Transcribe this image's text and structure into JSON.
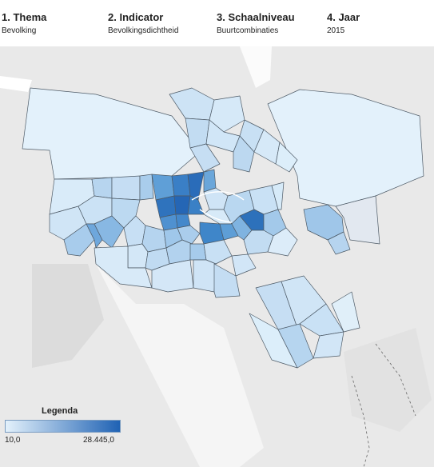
{
  "filters": [
    {
      "title": "1. Thema",
      "value": "Bevolking"
    },
    {
      "title": "2. Indicator",
      "value": "Bevolkingsdichtheid"
    },
    {
      "title": "3. Schaalniveau",
      "value": "Buurtcombinaties"
    },
    {
      "title": "4. Jaar",
      "value": "2015"
    }
  ],
  "legend": {
    "title": "Legenda",
    "min": "10,0",
    "max": "28.445,0"
  },
  "colors": {
    "low": "#e3f1fb",
    "high": "#1f62b4",
    "border": "#4d5a66",
    "land": "#e9e9e9"
  }
}
